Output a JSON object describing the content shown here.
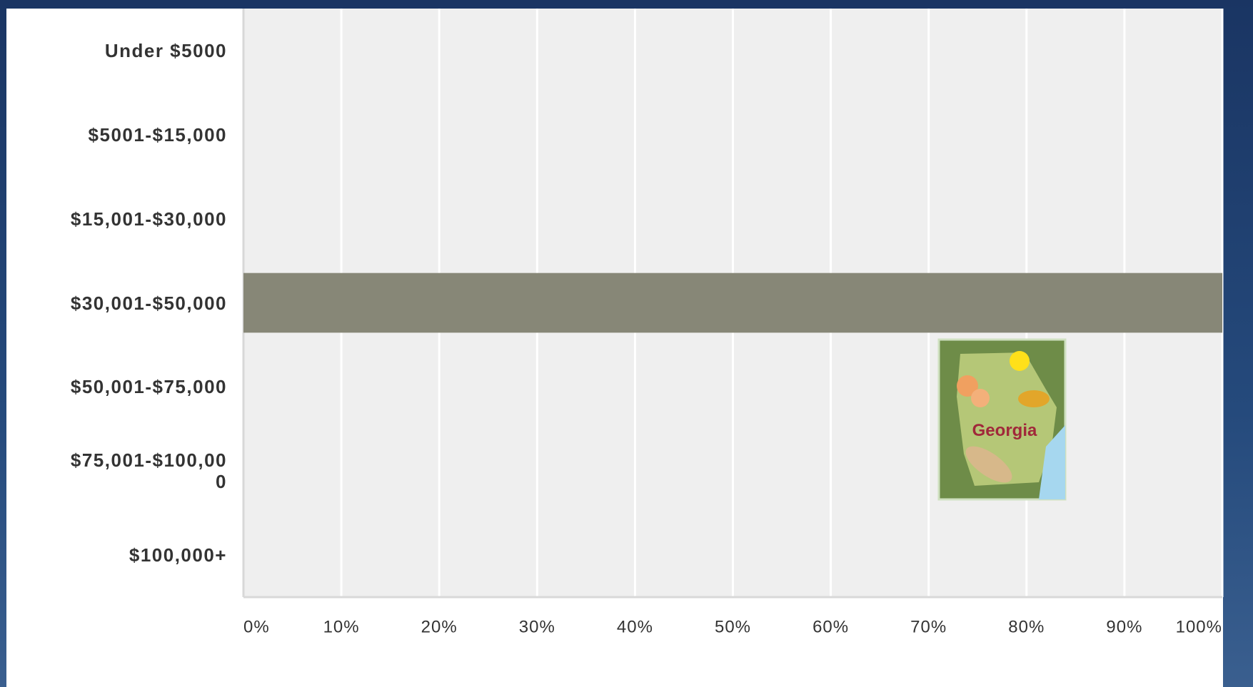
{
  "chart_data": {
    "type": "hbar",
    "categories": [
      "Under $5000",
      "$5001-$15,000",
      "$15,001-$30,000",
      "$30,001-$50,000",
      "$50,001-$75,000",
      "$75,001-$100,000",
      "$100,000+"
    ],
    "values": [
      0,
      0,
      0,
      100,
      0,
      0,
      0
    ],
    "color": "#878777",
    "xlim": [
      0,
      100
    ],
    "xticks": [
      {
        "value": 0,
        "label": "0%"
      },
      {
        "value": 10,
        "label": "10%"
      },
      {
        "value": 20,
        "label": "20%"
      },
      {
        "value": 30,
        "label": "30%"
      },
      {
        "value": 40,
        "label": "40%"
      },
      {
        "value": 50,
        "label": "50%"
      },
      {
        "value": 60,
        "label": "60%"
      },
      {
        "value": 70,
        "label": "70%"
      },
      {
        "value": 80,
        "label": "80%"
      },
      {
        "value": 90,
        "label": "90%"
      },
      {
        "value": 100,
        "label": "100%"
      }
    ],
    "grid": true,
    "annotation": "Georgia"
  }
}
